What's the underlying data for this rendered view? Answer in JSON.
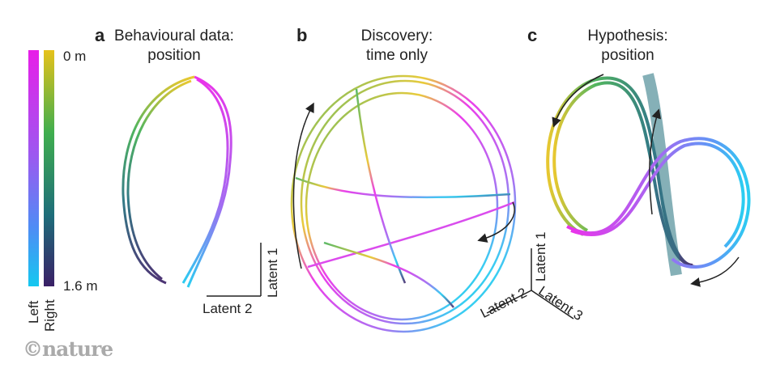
{
  "colorbar": {
    "top_label": "0 m",
    "bottom_label": "1.6 m",
    "left_label": "Left",
    "right_label": "Right",
    "left_colors": [
      "#e81ee8",
      "#9b59f0",
      "#4f8cf5",
      "#14c8f0"
    ],
    "right_colors": [
      "#e6c21a",
      "#3fae4e",
      "#1e6d7a",
      "#3a1f66"
    ]
  },
  "panel_a": {
    "letter": "a",
    "title_line1": "Behavioural data:",
    "title_line2": "position",
    "axis_y": "Latent 1",
    "axis_x": "Latent 2"
  },
  "panel_b": {
    "letter": "b",
    "title_line1": "Discovery:",
    "title_line2": "time only"
  },
  "panel_c": {
    "letter": "c",
    "title_line1": "Hypothesis:",
    "title_line2": "position",
    "axis_1": "Latent 1",
    "axis_2": "Latent 2",
    "axis_3": "Latent 3"
  },
  "logo": "©nature"
}
